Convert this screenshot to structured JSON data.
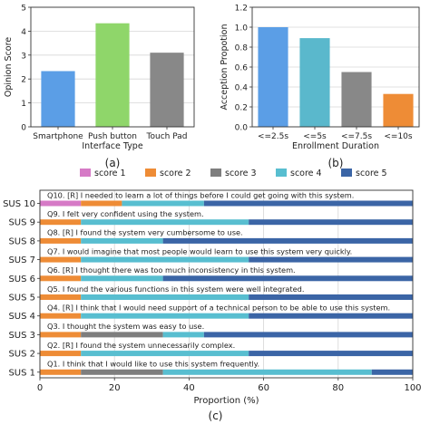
{
  "chart_data": [
    {
      "type": "bar",
      "panel": "(a)",
      "title": "",
      "xlabel": "Interface Type",
      "ylabel": "Opinion Score",
      "categories": [
        "Smartphone",
        "Push button",
        "Touch Pad"
      ],
      "values": [
        2.33,
        4.33,
        3.1
      ],
      "colors": [
        "#5b9ee6",
        "#8fd66a",
        "#888888"
      ],
      "ylim": [
        0,
        5
      ],
      "yticks": [
        "0",
        "1",
        "2",
        "3",
        "4",
        "5"
      ],
      "grid": true
    },
    {
      "type": "bar",
      "panel": "(b)",
      "title": "",
      "xlabel": "Enrollment Duration",
      "ylabel": "Acception Propotion",
      "categories": [
        "<=2.5s",
        "<=5s",
        "<=7.5s",
        "<=10s"
      ],
      "values": [
        1.0,
        0.89,
        0.55,
        0.33
      ],
      "colors": [
        "#5b9ee6",
        "#5ab8cc",
        "#888888",
        "#ee8c36"
      ],
      "ylim": [
        0,
        1.2
      ],
      "yticks": [
        "0.0",
        "0.2",
        "0.4",
        "0.6",
        "0.8",
        "1.0",
        "1.2"
      ],
      "grid": true
    },
    {
      "type": "bar",
      "orientation": "horizontal-stacked",
      "panel": "(c)",
      "title": "",
      "xlabel": "Proportion (%)",
      "ylabel": "",
      "xlim": [
        0,
        100
      ],
      "xticks": [
        "0",
        "20",
        "40",
        "60",
        "80",
        "100"
      ],
      "legend_position": "top",
      "series": [
        {
          "name": "score 1",
          "color": "#d67ac6",
          "values": [
            11,
            0,
            0,
            0,
            0,
            0,
            0,
            0,
            0,
            0
          ]
        },
        {
          "name": "score 2",
          "color": "#ee8c36",
          "values": [
            11,
            11,
            11,
            11,
            11,
            11,
            11,
            11,
            11,
            11
          ]
        },
        {
          "name": "score 3",
          "color": "#7e7e7e",
          "values": [
            0,
            0,
            0,
            0,
            0,
            0,
            0,
            22,
            0,
            22
          ]
        },
        {
          "name": "score 4",
          "color": "#58bed0",
          "values": [
            22,
            45,
            22,
            45,
            22,
            45,
            45,
            11,
            45,
            56
          ]
        },
        {
          "name": "score 5",
          "color": "#3b65a6",
          "values": [
            56,
            44,
            67,
            44,
            67,
            44,
            44,
            56,
            44,
            11
          ]
        }
      ],
      "rows": [
        {
          "label": "SUS 10",
          "question": "Q10. [R] I needed to learn a lot of things before I could get going with this system."
        },
        {
          "label": "SUS 9",
          "question": "Q9. I felt very confident using the system."
        },
        {
          "label": "SUS 8",
          "question": "Q8. [R] I found the system very cumbersome to use."
        },
        {
          "label": "SUS 7",
          "question": "Q7. I would imagine that most people would learn to use this system very quickly."
        },
        {
          "label": "SUS 6",
          "question": "Q6. [R] I thought there was too much inconsistency in this system."
        },
        {
          "label": "SUS 5",
          "question": "Q5. I found the various functions in this system were well integrated."
        },
        {
          "label": "SUS 4",
          "question": "Q4. [R] I think that I would need support of a technical person to be able to use this system."
        },
        {
          "label": "SUS 3",
          "question": "Q3. I thought the system was easy to use."
        },
        {
          "label": "SUS 2",
          "question": "Q2. [R] I found the system unnecessarily complex."
        },
        {
          "label": "SUS 1",
          "question": "Q1. I think that I would like to use this system frequently."
        }
      ]
    }
  ]
}
